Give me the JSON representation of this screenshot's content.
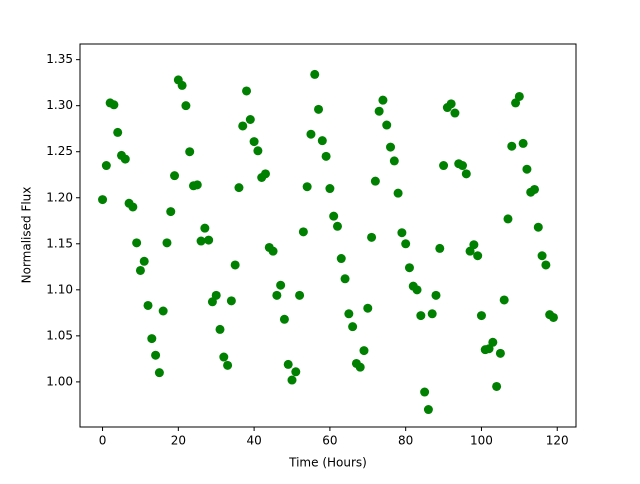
{
  "chart_data": {
    "type": "scatter",
    "x_label": "Time (Hours)",
    "y_label": "Normalised Flux",
    "color": "#008000",
    "x": [
      0,
      1,
      2,
      3,
      4,
      5,
      6,
      7,
      8,
      9,
      10,
      11,
      12,
      13,
      14,
      15,
      16,
      17,
      18,
      19,
      20,
      21,
      22,
      23,
      24,
      25,
      26,
      27,
      28,
      29,
      30,
      31,
      32,
      33,
      34,
      35,
      36,
      37,
      38,
      39,
      40,
      41,
      42,
      43,
      44,
      45,
      46,
      47,
      48,
      49,
      50,
      51,
      52,
      53,
      54,
      55,
      56,
      57,
      58,
      59,
      60,
      61,
      62,
      63,
      64,
      65,
      66,
      67,
      68,
      69,
      70,
      71,
      72,
      73,
      74,
      75,
      76,
      77,
      78,
      79,
      80,
      81,
      82,
      83,
      84,
      85,
      86,
      87,
      88,
      89,
      90,
      91,
      92,
      93,
      94,
      95,
      96,
      97,
      98,
      99,
      100,
      101,
      102,
      103,
      104,
      105,
      106,
      107,
      108,
      109,
      110,
      111,
      112,
      113,
      114,
      115,
      116,
      117,
      118,
      119
    ],
    "values": [
      1.198,
      1.235,
      1.303,
      1.301,
      1.271,
      1.246,
      1.242,
      1.194,
      1.19,
      1.151,
      1.121,
      1.131,
      1.083,
      1.047,
      1.029,
      1.01,
      1.077,
      1.151,
      1.185,
      1.224,
      1.328,
      1.322,
      1.3,
      1.25,
      1.213,
      1.214,
      1.153,
      1.167,
      1.154,
      1.087,
      1.094,
      1.057,
      1.027,
      1.018,
      1.088,
      1.127,
      1.211,
      1.278,
      1.316,
      1.285,
      1.261,
      1.251,
      1.222,
      1.226,
      1.146,
      1.142,
      1.094,
      1.105,
      1.068,
      1.019,
      1.002,
      1.011,
      1.094,
      1.163,
      1.212,
      1.269,
      1.334,
      1.296,
      1.262,
      1.245,
      1.21,
      1.18,
      1.169,
      1.134,
      1.112,
      1.074,
      1.06,
      1.02,
      1.016,
      1.034,
      1.08,
      1.157,
      1.218,
      1.294,
      1.306,
      1.279,
      1.255,
      1.24,
      1.205,
      1.162,
      1.15,
      1.124,
      1.104,
      1.1,
      1.072,
      0.989,
      0.97,
      1.074,
      1.094,
      1.145,
      1.235,
      1.298,
      1.302,
      1.292,
      1.237,
      1.235,
      1.226,
      1.142,
      1.149,
      1.137,
      1.072,
      1.035,
      1.036,
      1.043,
      0.995,
      1.031,
      1.089,
      1.177,
      1.256,
      1.303,
      1.31,
      1.259,
      1.231,
      1.206,
      1.209,
      1.168,
      1.137,
      1.127,
      1.073,
      1.07
    ],
    "xlim": [
      -5.95,
      124.95
    ],
    "xticks": [
      0,
      20,
      40,
      60,
      80,
      100,
      120
    ],
    "ylim": [
      0.951,
      1.367
    ],
    "yticks": [
      {
        "value": 1,
        "label": "1.00"
      },
      1.05,
      {
        "value": 1.1,
        "label": "1.10"
      },
      1.15,
      {
        "value": 1.2,
        "label": "1.20"
      },
      1.25,
      {
        "value": 1.3,
        "label": "1.30"
      },
      1.35
    ]
  }
}
